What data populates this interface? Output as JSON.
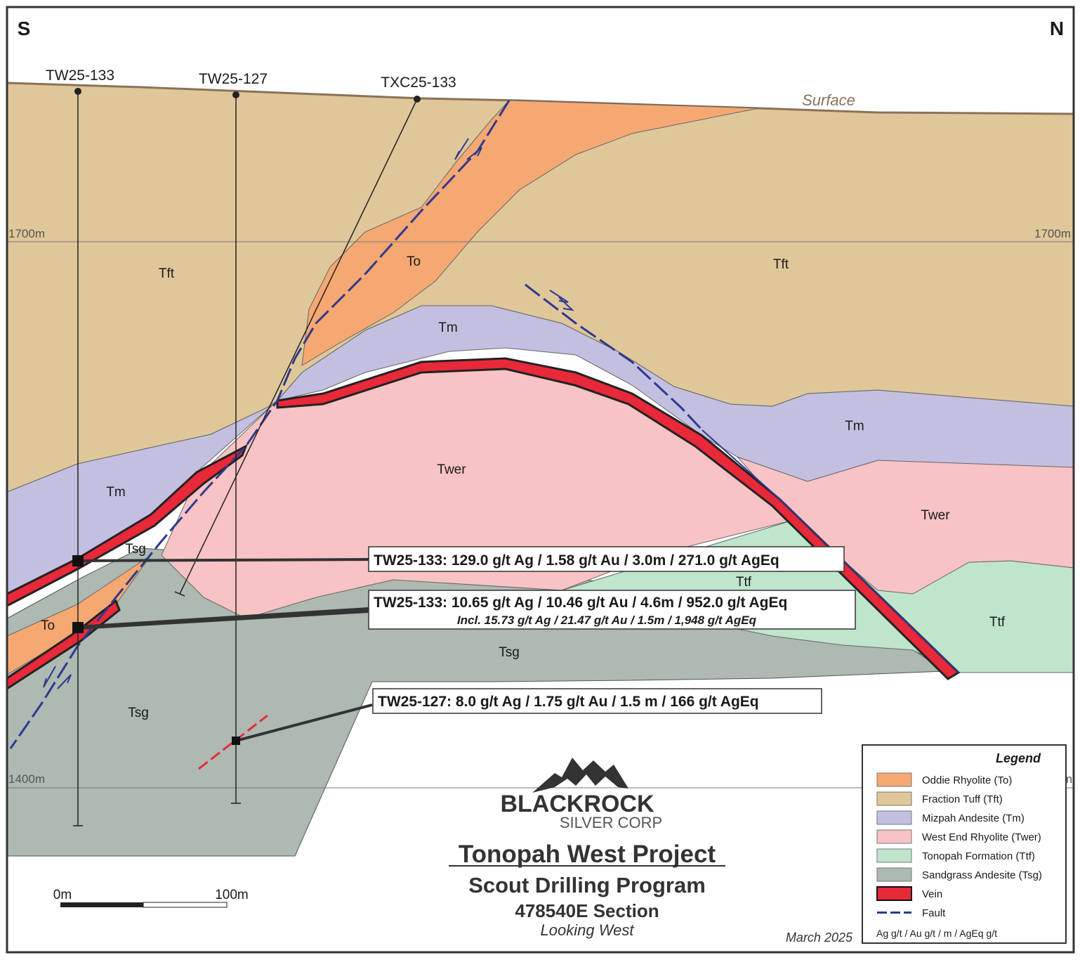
{
  "corners": {
    "south": "S",
    "north": "N"
  },
  "surface_label": "Surface",
  "elevations": {
    "upper_left": "1700m",
    "upper_right": "1700m",
    "lower_left": "1400m",
    "lower_right": "m"
  },
  "drill_holes": [
    "TW25-133",
    "TW25-127",
    "TXC25-133"
  ],
  "units": {
    "tft_left": "Tft",
    "tft_right": "Tft",
    "to_upper": "To",
    "to_lower": "To",
    "tm_center": "Tm",
    "tm_left": "Tm",
    "tm_right": "Tm",
    "twer_center": "Twer",
    "twer_right": "Twer",
    "tsg_upper": "Tsg",
    "tsg_center": "Tsg",
    "tsg_lower": "Tsg",
    "ttf_center": "Ttf",
    "ttf_right": "Ttf"
  },
  "intercepts": {
    "i1": "TW25-133: 129.0 g/t Ag / 1.58 g/t Au / 3.0m / 271.0 g/t AgEq",
    "i2": "TW25-133: 10.65 g/t Ag / 10.46 g/t Au / 4.6m / 952.0 g/t AgEq",
    "i2_sub": "Incl. 15.73 g/t Ag / 21.47 g/t Au / 1.5m / 1,948 g/t AgEq",
    "i3": "TW25-127: 8.0 g/t Ag / 1.75 g/t Au / 1.5 m / 166 g/t AgEq"
  },
  "scale_bar": {
    "left_label": "0m",
    "right_label": "100m"
  },
  "logo": {
    "line1": "BLACKROCK",
    "line2": "SILVER CORP"
  },
  "title_block": {
    "title": "Tonopah West Project",
    "subtitle": "Scout Drilling Program",
    "section": "478540E Section",
    "view": "Looking West"
  },
  "date": "March 2025",
  "legend": {
    "title": "Legend",
    "items": [
      {
        "label": "Oddie Rhyolite (To)",
        "color": "#f6a872"
      },
      {
        "label": "Fraction Tuff (Tft)",
        "color": "#dfc79a"
      },
      {
        "label": "Mizpah Andesite (Tm)",
        "color": "#c3bfe0"
      },
      {
        "label": "West End Rhyolite (Twer)",
        "color": "#f8c3c5"
      },
      {
        "label": "Tonopah Formation (Ttf)",
        "color": "#bfe5cc"
      },
      {
        "label": "Sandgrass Andesite (Tsg)",
        "color": "#adb9b1"
      },
      {
        "label": "Vein",
        "color": "#e8293a"
      },
      {
        "label": "Fault",
        "color": "#2e3a8f"
      }
    ],
    "units_note": "Ag g/t / Au g/t / m / AgEq g/t"
  }
}
